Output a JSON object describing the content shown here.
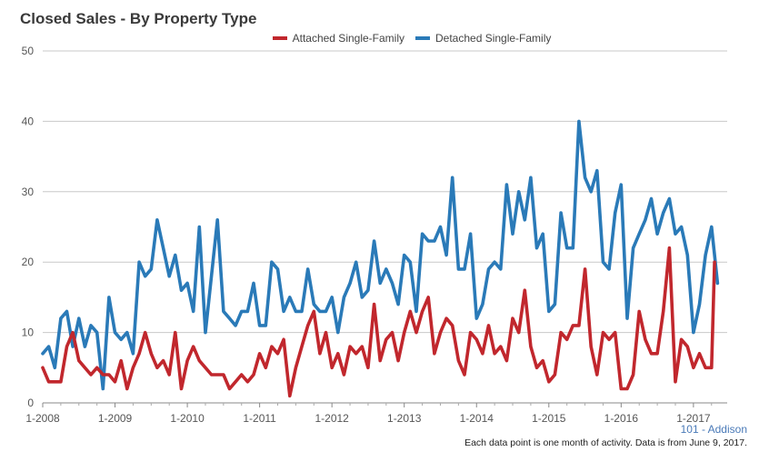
{
  "chart_data": {
    "type": "line",
    "title": "Closed Sales - By Property Type",
    "ylim": [
      0,
      50
    ],
    "y_ticks": [
      0,
      10,
      20,
      30,
      40,
      50
    ],
    "x_ticks": [
      "1-2008",
      "1-2009",
      "1-2010",
      "1-2011",
      "1-2012",
      "1-2013",
      "1-2014",
      "1-2015",
      "1-2016",
      "1-2017"
    ],
    "x_start": "1-2008",
    "grid": true,
    "legend_placement": "top",
    "series": [
      {
        "name": "Attached Single-Family",
        "color": "#c1272d",
        "values": [
          5,
          3,
          3,
          3,
          8,
          10,
          6,
          5,
          4,
          5,
          4,
          4,
          3,
          6,
          2,
          5,
          7,
          10,
          7,
          5,
          6,
          4,
          10,
          2,
          6,
          8,
          6,
          5,
          4,
          4,
          4,
          2,
          3,
          4,
          3,
          4,
          7,
          5,
          8,
          7,
          9,
          1,
          5,
          8,
          11,
          13,
          7,
          10,
          5,
          7,
          4,
          8,
          7,
          8,
          5,
          14,
          6,
          9,
          10,
          6,
          10,
          13,
          10,
          13,
          15,
          7,
          10,
          12,
          11,
          6,
          4,
          10,
          9,
          7,
          11,
          7,
          8,
          6,
          12,
          10,
          16,
          8,
          5,
          6,
          3,
          4,
          10,
          9,
          11,
          11,
          19,
          8,
          4,
          10,
          9,
          10,
          2,
          2,
          4,
          13,
          9,
          7,
          7,
          13,
          22,
          3,
          9,
          8,
          5,
          7,
          5,
          5,
          20
        ],
        "final_x_offset": 0.5
      },
      {
        "name": "Detached Single-Family",
        "color": "#2a7ab8",
        "values": [
          7,
          8,
          5,
          12,
          13,
          8,
          12,
          8,
          11,
          10,
          2,
          15,
          10,
          9,
          10,
          7,
          20,
          18,
          19,
          26,
          22,
          18,
          21,
          16,
          17,
          13,
          25,
          10,
          18,
          26,
          13,
          12,
          11,
          13,
          13,
          17,
          11,
          11,
          20,
          19,
          13,
          15,
          13,
          13,
          19,
          14,
          13,
          13,
          15,
          10,
          15,
          17,
          20,
          15,
          16,
          23,
          17,
          19,
          17,
          14,
          21,
          20,
          13,
          24,
          23,
          23,
          25,
          21,
          32,
          19,
          19,
          24,
          12,
          14,
          19,
          20,
          19,
          31,
          24,
          30,
          26,
          32,
          22,
          24,
          13,
          14,
          27,
          22,
          22,
          40,
          32,
          30,
          33,
          20,
          19,
          27,
          31,
          12,
          22,
          24,
          26,
          29,
          24,
          27,
          29,
          24,
          25,
          21,
          10,
          14,
          21,
          25,
          17
        ]
      }
    ],
    "source_label": "101 - Addison",
    "footnote": "Each data point is one month of activity. Data is from June 9, 2017."
  }
}
